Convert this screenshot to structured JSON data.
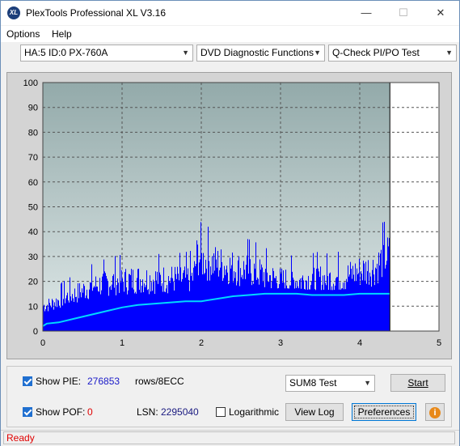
{
  "window": {
    "title": "PlexTools Professional XL V3.16",
    "icon_text": "XL",
    "controls": {
      "minimize": "—",
      "maximize": "☐",
      "close": "✕"
    }
  },
  "menu": {
    "options": "Options",
    "help": "Help"
  },
  "toolbar": {
    "drive": "HA:5 ID:0  PX-760A",
    "function": "DVD Diagnostic Functions",
    "test": "Q-Check PI/PO Test"
  },
  "chart_data": {
    "type": "bar",
    "xlabel": "",
    "ylabel": "",
    "xlim": [
      0,
      5
    ],
    "ylim": [
      0,
      100
    ],
    "x_ticks": [
      "0",
      "1",
      "2",
      "3",
      "4",
      "5"
    ],
    "y_ticks": [
      "0",
      "10",
      "20",
      "30",
      "40",
      "50",
      "60",
      "70",
      "80",
      "90",
      "100"
    ],
    "grid": true,
    "scan_end_x": 4.38,
    "colors": {
      "bars": "#0000ff",
      "sum8_line": "#00d8ff",
      "plot_bg_top": "#93aaaa",
      "plot_bg_bottom": "#dfe8e8"
    },
    "series": [
      {
        "kind": "pie_envelope",
        "x": [
          0.0,
          0.1,
          0.2,
          0.3,
          0.4,
          0.5,
          0.6,
          0.7,
          0.8,
          0.9,
          1.0,
          1.2,
          1.4,
          1.6,
          1.8,
          1.9,
          1.95,
          2.0,
          2.2,
          2.4,
          2.5,
          2.6,
          2.8,
          3.0,
          3.2,
          3.4,
          3.6,
          3.8,
          4.0,
          4.2,
          4.3,
          4.38
        ],
        "values": [
          13,
          14,
          16,
          18,
          19,
          21,
          23,
          24,
          25,
          26,
          26,
          27,
          27,
          27,
          27,
          28,
          40,
          37,
          35,
          33,
          32,
          32,
          29,
          26,
          26,
          27,
          27,
          28,
          31,
          33,
          38,
          40
        ]
      },
      {
        "kind": "sum8_line",
        "x": [
          0.0,
          0.05,
          0.2,
          0.4,
          0.6,
          0.8,
          1.0,
          1.2,
          1.4,
          1.6,
          1.8,
          1.9,
          2.0,
          2.2,
          2.4,
          2.6,
          2.8,
          3.0,
          3.2,
          3.4,
          3.6,
          3.8,
          4.0,
          4.2,
          4.38
        ],
        "values": [
          2,
          3,
          3.5,
          5,
          6.5,
          8,
          9.5,
          10.5,
          11,
          11.5,
          12,
          12,
          12,
          13,
          14,
          14.5,
          15,
          15,
          15,
          14.5,
          14.5,
          14.5,
          15,
          15,
          15
        ]
      }
    ]
  },
  "controls": {
    "show_pie_label": "Show PIE:",
    "pie_value": "276853",
    "pie_unit": "rows/8ECC",
    "show_pof_label": "Show POF:",
    "pof_value": "0",
    "lsn_label": "LSN:",
    "lsn_value": "2295040",
    "logarithmic_label": "Logarithmic",
    "test_select": "SUM8 Test",
    "start_button": "Start",
    "view_log_button": "View Log",
    "preferences_button": "Preferences",
    "show_pie_checked": true,
    "show_pof_checked": true,
    "logarithmic_checked": false,
    "color_pie_value": "#1a1ac8",
    "color_pof_value": "#e00000"
  },
  "status": {
    "text": "Ready"
  }
}
